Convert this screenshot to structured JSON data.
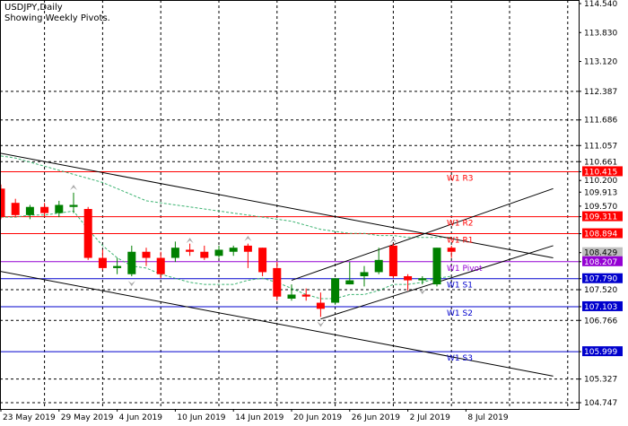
{
  "header": {
    "symbol": "USDJPY,Daily",
    "subtitle": "Showing Weekly Pivots."
  },
  "colors": {
    "background": "#ffffff",
    "grid": "#000000",
    "bull": "#008000",
    "bear": "#ff0000",
    "resistance": "#ff0000",
    "support": "#0000cd",
    "pivot": "#9400d3",
    "ma": "#3cb371",
    "trendline": "#000000",
    "fractal": "#a9a9a9"
  },
  "chart_data": {
    "type": "candlestick",
    "title": "USDJPY,Daily",
    "subtitle": "Showing Weekly Pivots.",
    "ylim": [
      104.747,
      114.54
    ],
    "price_ticks": [
      114.54,
      113.83,
      113.12,
      112.387,
      111.686,
      111.057,
      110.661,
      110.415,
      110.2,
      109.913,
      109.57,
      109.311,
      108.894,
      108.429,
      108.207,
      107.79,
      107.52,
      107.103,
      106.766,
      105.999,
      105.327,
      104.747
    ],
    "x_labels": [
      "23 May 2019",
      "29 May 2019",
      "4 Jun 2019",
      "10 Jun 2019",
      "14 Jun 2019",
      "20 Jun 2019",
      "26 Jun 2019",
      "2 Jul 2019",
      "8 Jul 2019"
    ],
    "candles": [
      {
        "o": 110.0,
        "h": 110.1,
        "c": 109.3,
        "l": 109.25
      },
      {
        "o": 109.65,
        "h": 109.75,
        "c": 109.35,
        "l": 109.3
      },
      {
        "o": 109.35,
        "h": 109.6,
        "c": 109.55,
        "l": 109.25
      },
      {
        "o": 109.55,
        "h": 109.65,
        "c": 109.4,
        "l": 109.3
      },
      {
        "o": 109.4,
        "h": 109.7,
        "c": 109.6,
        "l": 109.3
      },
      {
        "o": 109.55,
        "h": 109.9,
        "c": 109.6,
        "l": 109.4
      },
      {
        "o": 109.5,
        "h": 109.55,
        "c": 108.3,
        "l": 108.25
      },
      {
        "o": 108.3,
        "h": 108.5,
        "c": 108.05,
        "l": 108.0
      },
      {
        "o": 108.05,
        "h": 108.3,
        "c": 108.1,
        "l": 107.9
      },
      {
        "o": 107.9,
        "h": 108.6,
        "c": 108.45,
        "l": 107.85
      },
      {
        "o": 108.45,
        "h": 108.55,
        "c": 108.3,
        "l": 108.1
      },
      {
        "o": 108.3,
        "h": 108.45,
        "c": 107.9,
        "l": 107.8
      },
      {
        "o": 108.3,
        "h": 108.7,
        "c": 108.55,
        "l": 108.2
      },
      {
        "o": 108.5,
        "h": 108.65,
        "c": 108.45,
        "l": 108.35
      },
      {
        "o": 108.45,
        "h": 108.6,
        "c": 108.3,
        "l": 108.25
      },
      {
        "o": 108.35,
        "h": 108.6,
        "c": 108.5,
        "l": 108.3
      },
      {
        "o": 108.45,
        "h": 108.6,
        "c": 108.55,
        "l": 108.35
      },
      {
        "o": 108.6,
        "h": 108.65,
        "c": 108.45,
        "l": 108.05
      },
      {
        "o": 108.55,
        "h": 108.55,
        "c": 107.95,
        "l": 107.85
      },
      {
        "o": 108.05,
        "h": 108.2,
        "c": 107.35,
        "l": 107.25
      },
      {
        "o": 107.3,
        "h": 107.65,
        "c": 107.4,
        "l": 107.25
      },
      {
        "o": 107.4,
        "h": 107.55,
        "c": 107.35,
        "l": 107.25
      },
      {
        "o": 107.2,
        "h": 107.45,
        "c": 107.05,
        "l": 106.85
      },
      {
        "o": 107.2,
        "h": 107.8,
        "c": 107.8,
        "l": 107.15
      },
      {
        "o": 107.65,
        "h": 108.2,
        "c": 107.75,
        "l": 107.65
      },
      {
        "o": 107.85,
        "h": 108.1,
        "c": 107.95,
        "l": 107.6
      },
      {
        "o": 107.95,
        "h": 108.55,
        "c": 108.25,
        "l": 107.9
      },
      {
        "o": 108.6,
        "h": 108.65,
        "c": 107.85,
        "l": 107.8
      },
      {
        "o": 107.85,
        "h": 107.9,
        "c": 107.75,
        "l": 107.5
      },
      {
        "o": 107.75,
        "h": 107.85,
        "c": 107.8,
        "l": 107.65
      },
      {
        "o": 107.65,
        "h": 108.55,
        "c": 108.55,
        "l": 107.6
      },
      {
        "o": 108.55,
        "h": 108.6,
        "c": 108.45,
        "l": 108.3
      }
    ],
    "pivot_levels": [
      {
        "label": "W1 R3",
        "value": 110.415,
        "color": "#ff0000"
      },
      {
        "label": "W1 R2",
        "value": 109.311,
        "color": "#ff0000"
      },
      {
        "label": "W1 R1",
        "value": 108.894,
        "color": "#ff0000"
      },
      {
        "label": "W1 Pivot",
        "value": 108.207,
        "color": "#9400d3"
      },
      {
        "label": "W1 S1",
        "value": 107.79,
        "color": "#0000cd"
      },
      {
        "label": "W1 S2",
        "value": 107.103,
        "color": "#0000cd"
      },
      {
        "label": "W1 S3",
        "value": 105.999,
        "color": "#0000cd"
      }
    ],
    "highlighted_prices": [
      {
        "value": 110.415,
        "color": "#ff0000"
      },
      {
        "value": 109.311,
        "color": "#ff0000"
      },
      {
        "value": 108.894,
        "color": "#ff0000"
      },
      {
        "value": 108.429,
        "color": "#c0c0c0"
      },
      {
        "value": 108.207,
        "color": "#9400d3"
      },
      {
        "value": 107.79,
        "color": "#0000cd"
      },
      {
        "value": 107.103,
        "color": "#0000cd"
      },
      {
        "value": 105.999,
        "color": "#0000cd"
      }
    ],
    "dashed_levels": [
      112.387,
      111.686,
      111.057,
      110.661,
      107.52,
      106.766,
      105.327,
      104.747
    ],
    "trendlines": [
      {
        "points": [
          [
            -0.5,
            110.9
          ],
          [
            38,
            108.3
          ]
        ]
      },
      {
        "points": [
          [
            -0.5,
            108.0
          ],
          [
            38,
            105.4
          ]
        ]
      },
      {
        "points": [
          [
            20,
            107.75
          ],
          [
            38,
            110.0
          ]
        ]
      },
      {
        "points": [
          [
            22,
            106.8
          ],
          [
            38,
            108.6
          ]
        ]
      }
    ],
    "moving_averages": [
      {
        "values": [
          110.8,
          110.75,
          110.65,
          110.55,
          110.45,
          110.35,
          110.25,
          110.15,
          110.0,
          109.85,
          109.7,
          109.65,
          109.6,
          109.55,
          109.5,
          109.45,
          109.4,
          109.35,
          109.3,
          109.25,
          109.2,
          109.1,
          109.0,
          108.95,
          108.9,
          108.9,
          108.85,
          108.85,
          108.8,
          108.8,
          108.8,
          108.8
        ]
      },
      {
        "values": [
          109.3,
          109.3,
          109.35,
          109.35,
          109.4,
          109.45,
          109.0,
          108.6,
          108.3,
          108.1,
          108.05,
          107.9,
          107.8,
          107.7,
          107.65,
          107.65,
          107.65,
          107.75,
          107.8,
          107.7,
          107.55,
          107.4,
          107.3,
          107.3,
          107.4,
          107.4,
          107.5,
          107.65,
          107.65,
          107.7,
          107.8,
          107.85
        ]
      }
    ],
    "fractals": [
      {
        "i": 5,
        "value": 110.05,
        "dir": "up"
      },
      {
        "i": 9,
        "value": 107.65,
        "dir": "down"
      },
      {
        "i": 13,
        "value": 108.75,
        "dir": "up"
      },
      {
        "i": 17,
        "value": 108.8,
        "dir": "up"
      },
      {
        "i": 22,
        "value": 106.65,
        "dir": "down"
      },
      {
        "i": 27,
        "value": 108.75,
        "dir": "up"
      },
      {
        "i": 29,
        "value": 107.45,
        "dir": "down"
      }
    ]
  }
}
